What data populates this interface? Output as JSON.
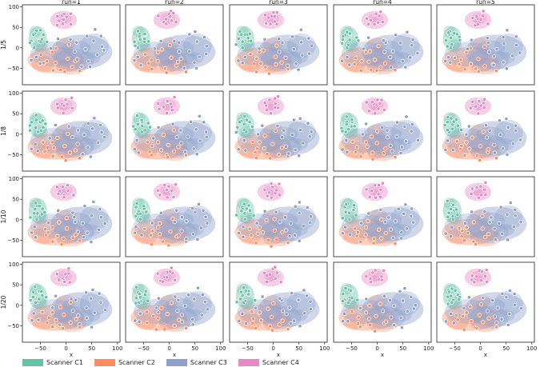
{
  "chart_data": {
    "type": "scatter",
    "layout": "grid",
    "columns": [
      "run=1",
      "run=2",
      "run=3",
      "run=4",
      "run=5"
    ],
    "rows": [
      "1/5",
      "1/8",
      "1/10",
      "1/20"
    ],
    "xlabel": "x",
    "ylabel": "",
    "xlim": [
      -85,
      105
    ],
    "ylim": [
      -90,
      105
    ],
    "xticks": [
      -50,
      0,
      50,
      100
    ],
    "yticks": [
      -50,
      0,
      50,
      100
    ],
    "xtick_labels": [
      "−50",
      "0",
      "50",
      "100"
    ],
    "ytick_labels": [
      "−50",
      "0",
      "50",
      "100"
    ],
    "grid": false,
    "legend_position": "bottom-left",
    "series": [
      {
        "name": "Scanner C1",
        "color": "#66c2a5",
        "density_center": [
          -55,
          25
        ],
        "points": [
          [
            -58,
            35
          ],
          [
            -62,
            28
          ],
          [
            -55,
            20
          ],
          [
            -48,
            30
          ],
          [
            -60,
            42
          ],
          [
            -52,
            12
          ],
          [
            -65,
            18
          ],
          [
            -45,
            22
          ],
          [
            -57,
            5
          ],
          [
            -50,
            38
          ],
          [
            -68,
            8
          ],
          [
            -40,
            15
          ]
        ]
      },
      {
        "name": "Scanner C2",
        "color": "#fc8d62",
        "density_center": [
          -10,
          -30
        ],
        "points": [
          [
            -40,
            -40
          ],
          [
            -30,
            -55
          ],
          [
            -20,
            -35
          ],
          [
            -10,
            -50
          ],
          [
            0,
            -25
          ],
          [
            -25,
            -15
          ],
          [
            10,
            -45
          ],
          [
            -45,
            -20
          ],
          [
            -5,
            -60
          ],
          [
            20,
            -35
          ],
          [
            30,
            -55
          ],
          [
            -15,
            -5
          ],
          [
            5,
            5
          ],
          [
            -35,
            -30
          ]
        ]
      },
      {
        "name": "Scanner C3",
        "color": "#8da0cb",
        "density_center": [
          30,
          -10
        ],
        "points": [
          [
            20,
            10
          ],
          [
            35,
            -5
          ],
          [
            50,
            15
          ],
          [
            60,
            -20
          ],
          [
            45,
            -35
          ],
          [
            25,
            -25
          ],
          [
            70,
            5
          ],
          [
            40,
            30
          ],
          [
            55,
            40
          ],
          [
            15,
            -10
          ],
          [
            65,
            25
          ],
          [
            30,
            -45
          ],
          [
            75,
            -10
          ],
          [
            10,
            20
          ],
          [
            50,
            -50
          ],
          [
            -20,
            20
          ],
          [
            -30,
            -5
          ],
          [
            -55,
            -40
          ],
          [
            -60,
            -20
          ],
          [
            -70,
            -35
          ]
        ]
      },
      {
        "name": "Scanner C4",
        "color": "#e78ac3",
        "density_center": [
          -5,
          65
        ],
        "points": [
          [
            -10,
            70
          ],
          [
            0,
            65
          ],
          [
            -5,
            80
          ],
          [
            5,
            75
          ],
          [
            -15,
            60
          ],
          [
            10,
            60
          ],
          [
            0,
            85
          ],
          [
            -8,
            55
          ],
          [
            8,
            88
          ],
          [
            -18,
            75
          ]
        ]
      }
    ]
  },
  "legend": {
    "items": [
      {
        "label": "Scanner C1",
        "color": "#66c2a5"
      },
      {
        "label": "Scanner C2",
        "color": "#fc8d62"
      },
      {
        "label": "Scanner C3",
        "color": "#8da0cb"
      },
      {
        "label": "Scanner C4",
        "color": "#e78ac3"
      }
    ]
  }
}
